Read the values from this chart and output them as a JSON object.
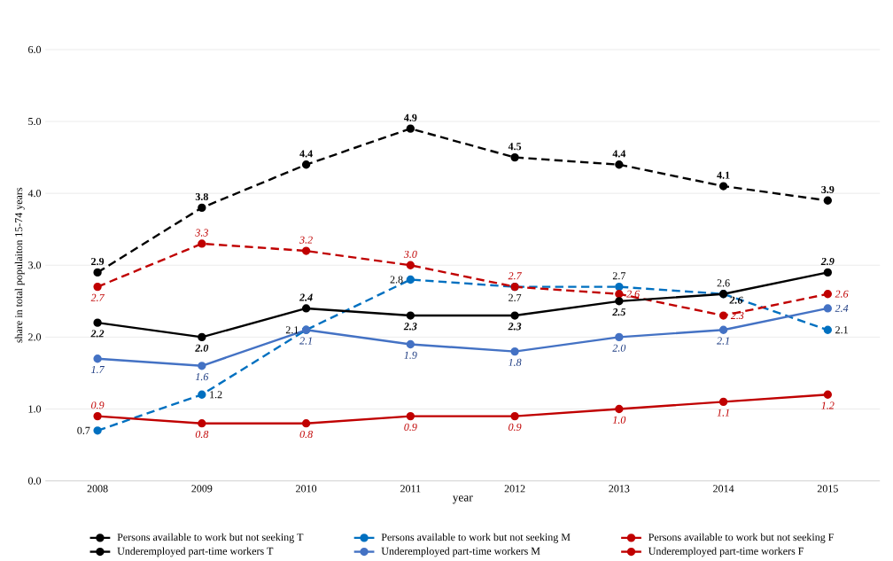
{
  "chart_data": {
    "type": "line",
    "xlabel": "year",
    "ylabel": "share in total populaiton 15-74 years",
    "categories": [
      "2008",
      "2009",
      "2010",
      "2011",
      "2012",
      "2013",
      "2014",
      "2015"
    ],
    "series": [
      {
        "name": "Persons available to work but not seeking T",
        "color": "#000000",
        "line_style": "dashed",
        "values": [
          2.9,
          3.8,
          4.4,
          4.9,
          4.5,
          4.4,
          4.1,
          3.9
        ],
        "value_labels": [
          "2.9",
          "3.8",
          "4.4",
          "4.9",
          "4.5",
          "4.4",
          "4.1",
          "3.9"
        ]
      },
      {
        "name": "Persons available to work but not seeking M",
        "color": "#0070c0",
        "line_style": "dashed",
        "values": [
          0.7,
          1.2,
          2.1,
          2.8,
          2.7,
          2.7,
          2.6,
          2.1
        ],
        "value_labels": [
          "0.7",
          "1.2",
          "2.1",
          "2.8",
          "2.7",
          "2.7",
          "2.6",
          "2.1"
        ]
      },
      {
        "name": "Persons available to work but not seeking F",
        "color": "#c00000",
        "line_style": "dashed",
        "values": [
          2.7,
          3.3,
          3.2,
          3.0,
          2.7,
          2.6,
          2.3,
          2.6
        ],
        "value_labels": [
          "2.7",
          "3.3",
          "3.2",
          "3.0",
          "2.7",
          "2.6",
          "2.3",
          "2.6"
        ]
      },
      {
        "name": "Underemployed part-time workers T",
        "color": "#000000",
        "line_style": "solid",
        "values": [
          2.2,
          2.0,
          2.4,
          2.3,
          2.3,
          2.5,
          2.6,
          2.9
        ],
        "value_labels": [
          "2.2",
          "2.0",
          "2.4",
          "2.3",
          "2.3",
          "2.5",
          "2.6",
          "2.9"
        ]
      },
      {
        "name": "Underemployed part-time workers M",
        "color": "#4472c4",
        "line_style": "solid",
        "values": [
          1.7,
          1.6,
          2.1,
          1.9,
          1.8,
          2.0,
          2.1,
          2.4
        ],
        "value_labels": [
          "1.7",
          "1.6",
          "2.1",
          "1.9",
          "1.8",
          "2.0",
          "2.1",
          "2.4"
        ]
      },
      {
        "name": "Underemployed part-time workers F",
        "color": "#c00000",
        "line_style": "solid",
        "values": [
          0.9,
          0.8,
          0.8,
          0.9,
          0.9,
          1.0,
          1.1,
          1.2
        ],
        "value_labels": [
          "0.9",
          "0.8",
          "0.8",
          "0.9",
          "0.9",
          "1.0",
          "1.1",
          "1.2"
        ]
      }
    ],
    "ylim": [
      0,
      6
    ],
    "yticks": [
      {
        "value": 0,
        "label": "0.0"
      },
      {
        "value": 1,
        "label": "1.0"
      },
      {
        "value": 2,
        "label": "2.0"
      },
      {
        "value": 3,
        "label": "3.0"
      },
      {
        "value": 4,
        "label": "4.0"
      },
      {
        "value": 5,
        "label": "5.0"
      },
      {
        "value": 6,
        "label": "6.0"
      }
    ],
    "grid": "y",
    "legend": "bottom",
    "marker": "circle"
  }
}
